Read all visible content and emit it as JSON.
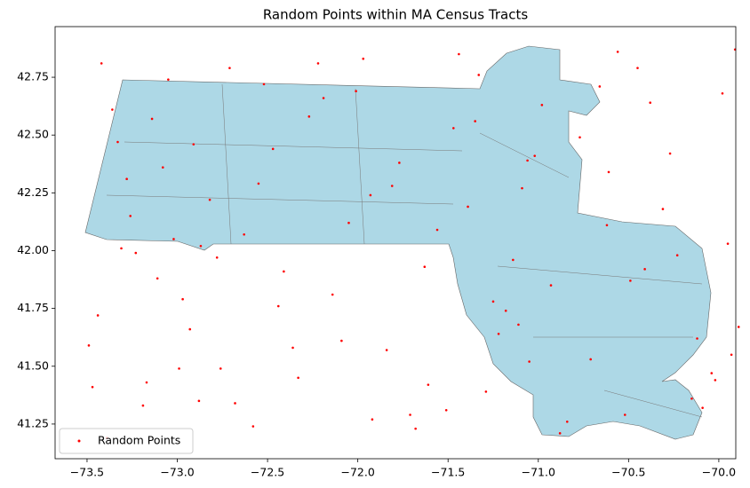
{
  "chart_data": {
    "type": "scatter",
    "title": "Random Points within MA Census Tracts",
    "xlim": [
      -73.677,
      -69.906
    ],
    "ylim": [
      41.1,
      42.969
    ],
    "xticks": [
      {
        "value": -73.5,
        "label": "−73.5"
      },
      {
        "value": -73.0,
        "label": "−73.0"
      },
      {
        "value": -72.5,
        "label": "−72.5"
      },
      {
        "value": -72.0,
        "label": "−72.0"
      },
      {
        "value": -71.5,
        "label": "−71.5"
      },
      {
        "value": -71.0,
        "label": "−71.0"
      },
      {
        "value": -70.5,
        "label": "−70.5"
      },
      {
        "value": -70.0,
        "label": "−70.0"
      }
    ],
    "yticks": [
      41.25,
      {
        "value": 41.5,
        "label": "41.50"
      },
      41.75,
      {
        "value": 42.0,
        "label": "42.00"
      },
      42.25,
      {
        "value": 42.5,
        "label": "42.50"
      },
      42.75
    ],
    "legend": "lower left",
    "series": [
      {
        "name": "Random Points",
        "color": "#ff0000",
        "x": [
          -73.42,
          -72.88,
          -71.35,
          -70.12,
          -72.05,
          -73.11,
          -70.66,
          -71.92,
          -72.47,
          -69.95,
          -73.28,
          -71.05,
          -70.88,
          -72.71,
          -71.63,
          -73.47,
          -70.31,
          -72.19,
          -71.18,
          -69.91,
          -72.93,
          -71.77,
          -73.02,
          -70.52,
          -72.36,
          -71.44,
          -70.04,
          -73.36,
          -72.58,
          -71.09,
          -70.77,
          -72.14,
          -73.19,
          -71.56,
          -70.23,
          -72.82,
          -71.29,
          -69.98,
          -73.05,
          -72.41,
          -71.84,
          -70.61,
          -72.99,
          -71.11,
          -73.33,
          -70.45,
          -72.27,
          -71.68,
          -70.93,
          -72.63,
          -73.44,
          -71.97,
          -70.15,
          -72.76,
          -71.39,
          -73.23,
          -70.71,
          -72.52,
          -71.02,
          -69.89,
          -73.14,
          -71.51,
          -70.38,
          -72.09,
          -72.87,
          -71.25,
          -70.56,
          -73.39,
          -71.81,
          -70.02,
          -72.68,
          -71.47,
          -73.08,
          -70.84,
          -72.22,
          -71.14,
          -70.27,
          -72.97,
          -71.61,
          -73.26,
          -70.49,
          -72.33,
          -71.93,
          -70.98,
          -73.49,
          -72.55,
          -71.33,
          -70.09,
          -72.78,
          -71.71,
          -73.17,
          -70.62,
          -72.44,
          -71.06,
          -69.93,
          -72.91,
          -71.22,
          -70.41,
          -73.31,
          -72.01
        ],
        "y": [
          42.81,
          41.35,
          42.56,
          41.62,
          42.12,
          41.88,
          42.71,
          41.27,
          42.44,
          42.03,
          42.31,
          41.52,
          41.21,
          42.79,
          41.93,
          41.41,
          42.18,
          42.66,
          41.74,
          42.87,
          41.66,
          42.38,
          42.05,
          41.29,
          41.58,
          42.85,
          41.47,
          42.61,
          41.24,
          42.27,
          42.49,
          41.81,
          41.33,
          42.09,
          41.98,
          42.22,
          41.39,
          42.68,
          42.74,
          41.91,
          41.57,
          42.34,
          41.49,
          41.68,
          42.47,
          42.79,
          42.58,
          41.23,
          41.85,
          42.07,
          41.72,
          42.83,
          41.36,
          41.49,
          42.19,
          41.99,
          41.53,
          42.72,
          42.41,
          41.67,
          42.57,
          41.31,
          42.64,
          41.61,
          42.02,
          41.78,
          42.86,
          41.19,
          42.28,
          41.44,
          41.34,
          42.53,
          42.36,
          41.26,
          42.81,
          41.96,
          42.42,
          41.79,
          41.42,
          42.15,
          41.87,
          41.45,
          42.24,
          42.63,
          41.59,
          42.29,
          42.76,
          41.32,
          41.97,
          41.29,
          41.43,
          42.11,
          41.76,
          42.39,
          41.55,
          42.46,
          41.64,
          41.92,
          42.01,
          42.69
        ]
      }
    ]
  }
}
